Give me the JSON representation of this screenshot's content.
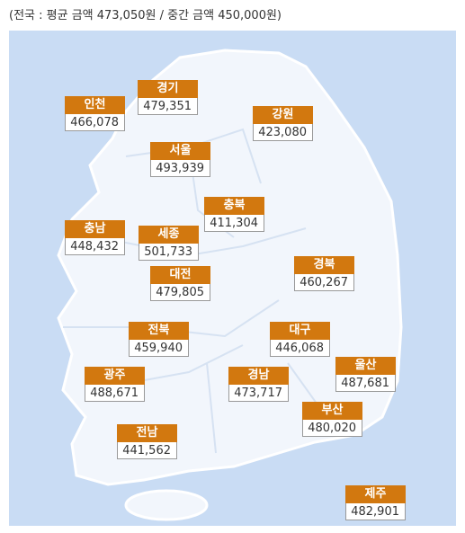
{
  "header": {
    "title": "(전국 : 평균 금액 473,050원 / 중간 금액 450,000원)"
  },
  "regions": [
    {
      "name": "인천",
      "value": "466,078"
    },
    {
      "name": "경기",
      "value": "479,351"
    },
    {
      "name": "강원",
      "value": "423,080"
    },
    {
      "name": "서울",
      "value": "493,939"
    },
    {
      "name": "충북",
      "value": "411,304"
    },
    {
      "name": "충남",
      "value": "448,432"
    },
    {
      "name": "세종",
      "value": "501,733"
    },
    {
      "name": "대전",
      "value": "479,805"
    },
    {
      "name": "경북",
      "value": "460,267"
    },
    {
      "name": "전북",
      "value": "459,940"
    },
    {
      "name": "대구",
      "value": "446,068"
    },
    {
      "name": "광주",
      "value": "488,671"
    },
    {
      "name": "경남",
      "value": "473,717"
    },
    {
      "name": "울산",
      "value": "487,681"
    },
    {
      "name": "부산",
      "value": "480,020"
    },
    {
      "name": "전남",
      "value": "441,562"
    },
    {
      "name": "제주",
      "value": "482,901"
    }
  ]
}
